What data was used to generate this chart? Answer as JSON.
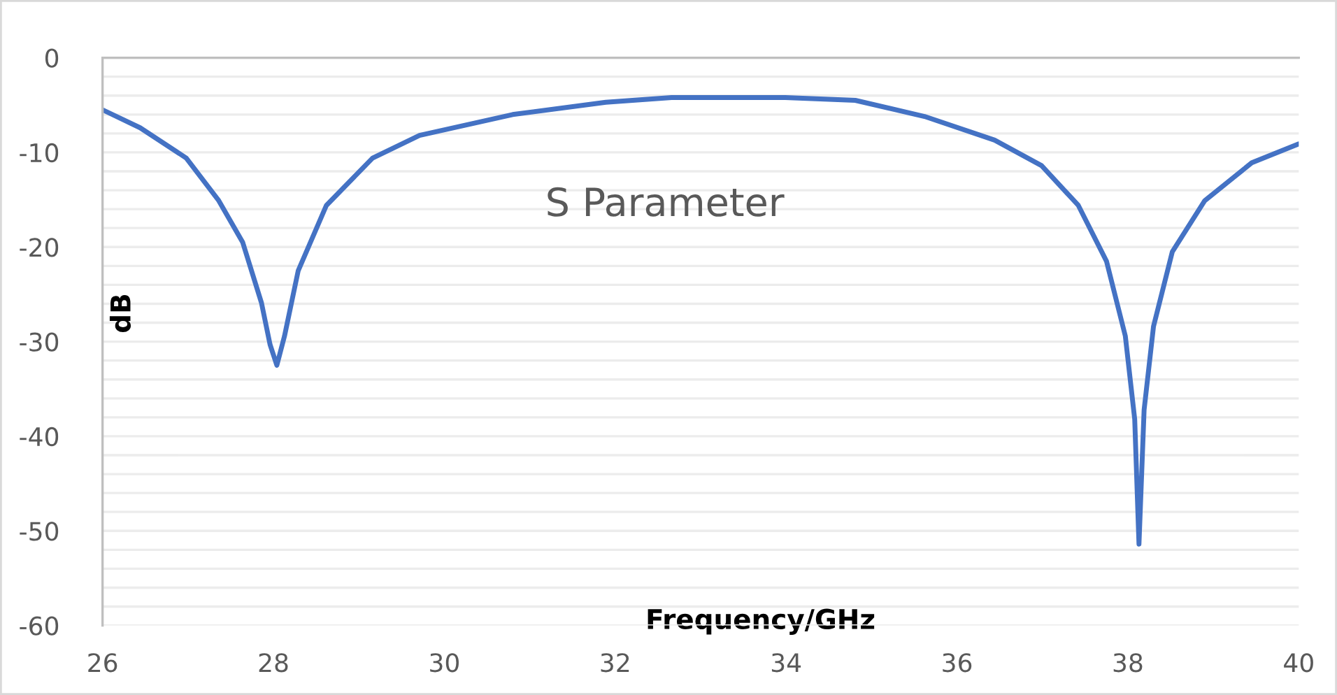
{
  "chart_data": {
    "type": "line",
    "title": "S Parameter",
    "xlabel": "Frequency/GHz",
    "ylabel": "dB",
    "xlim": [
      26,
      40
    ],
    "xticks": [
      26,
      28,
      30,
      32,
      34,
      36,
      38,
      40
    ],
    "ylim": [
      -60,
      0
    ],
    "yticks": [
      0,
      {
        "value": -2,
        "label": null
      },
      {
        "value": -4,
        "label": null
      },
      {
        "value": -6,
        "label": null
      },
      {
        "value": -8,
        "label": null
      },
      -10,
      {
        "value": -12,
        "label": null
      },
      {
        "value": -14,
        "label": null
      },
      {
        "value": -16,
        "label": null
      },
      {
        "value": -18,
        "label": null
      },
      -20,
      {
        "value": -22,
        "label": null
      },
      {
        "value": -24,
        "label": null
      },
      {
        "value": -26,
        "label": null
      },
      {
        "value": -28,
        "label": null
      },
      -30,
      {
        "value": -32,
        "label": null
      },
      {
        "value": -34,
        "label": null
      },
      {
        "value": -36,
        "label": null
      },
      {
        "value": -38,
        "label": null
      },
      -40,
      {
        "value": -42,
        "label": null
      },
      {
        "value": -44,
        "label": null
      },
      {
        "value": -46,
        "label": null
      },
      {
        "value": -48,
        "label": null
      },
      -50,
      {
        "value": -52,
        "label": null
      },
      {
        "value": -54,
        "label": null
      },
      {
        "value": -56,
        "label": null
      },
      {
        "value": -58,
        "label": null
      },
      -60
    ],
    "grid": "y",
    "marker": "none",
    "line_style": "solid",
    "series": [
      {
        "color": "#4472c4",
        "x": [
          26,
          26.44,
          26.98,
          27.36,
          27.64,
          27.86,
          27.96,
          28.04,
          28.13,
          28.29,
          28.62,
          29.16,
          29.71,
          30.8,
          31.89,
          32.66,
          33.99,
          34.81,
          35.62,
          36.44,
          36.99,
          37.42,
          37.75,
          37.97,
          38.08,
          38.13,
          38.19,
          38.3,
          38.52,
          38.9,
          39.45,
          40
        ],
        "values": [
          -5.5,
          -7.4,
          -10.6,
          -15.1,
          -19.5,
          -25.9,
          -30.3,
          -32.5,
          -29.4,
          -22.5,
          -15.6,
          -10.6,
          -8.2,
          -6.0,
          -4.7,
          -4.2,
          -4.2,
          -4.5,
          -6.2,
          -8.7,
          -11.4,
          -15.6,
          -21.5,
          -29.4,
          -38.2,
          -51.4,
          -37.2,
          -28.4,
          -20.5,
          -15.1,
          -11.1,
          -9.1
        ]
      }
    ]
  }
}
